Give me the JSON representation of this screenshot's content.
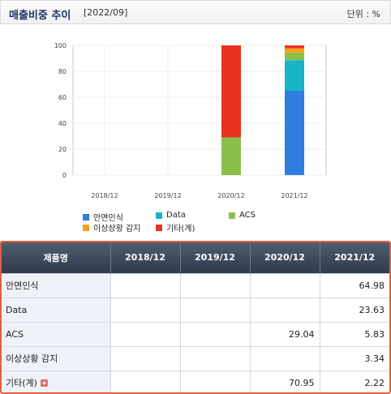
{
  "header": {
    "title": "매출비중 추이",
    "period": "[2022/09]",
    "unit": "단위 : %"
  },
  "chart_data": {
    "type": "bar",
    "stacked": true,
    "categories": [
      "2018/12",
      "2019/12",
      "2020/12",
      "2021/12"
    ],
    "ylim": [
      0,
      100
    ],
    "yticks": [
      0,
      20,
      40,
      60,
      80,
      100
    ],
    "grid": true,
    "legend_position": "bottom",
    "series": [
      {
        "name": "안면인식",
        "color": "#2f7de1",
        "values": [
          null,
          null,
          null,
          64.98
        ]
      },
      {
        "name": "Data",
        "color": "#18b4c8",
        "values": [
          null,
          null,
          null,
          23.63
        ]
      },
      {
        "name": "ACS",
        "color": "#8ac04a",
        "values": [
          null,
          null,
          29.04,
          5.83
        ]
      },
      {
        "name": "이상상황 감지",
        "color": "#f5a21b",
        "values": [
          null,
          null,
          null,
          3.34
        ]
      },
      {
        "name": "기타(계)",
        "color": "#e8321e",
        "values": [
          null,
          null,
          70.95,
          2.22
        ]
      }
    ]
  },
  "table": {
    "headers": [
      "제품명",
      "2018/12",
      "2019/12",
      "2020/12",
      "2021/12"
    ],
    "rows": [
      {
        "name": "안면인식",
        "values": [
          "",
          "",
          "",
          "64.98"
        ]
      },
      {
        "name": "Data",
        "values": [
          "",
          "",
          "",
          "23.63"
        ]
      },
      {
        "name": "ACS",
        "values": [
          "",
          "",
          "29.04",
          "5.83"
        ]
      },
      {
        "name": "이상상황 감지",
        "values": [
          "",
          "",
          "",
          "3.34"
        ]
      },
      {
        "name": "기타(계)",
        "values": [
          "",
          "",
          "70.95",
          "2.22"
        ],
        "expand_icon": "plus-icon"
      }
    ]
  }
}
